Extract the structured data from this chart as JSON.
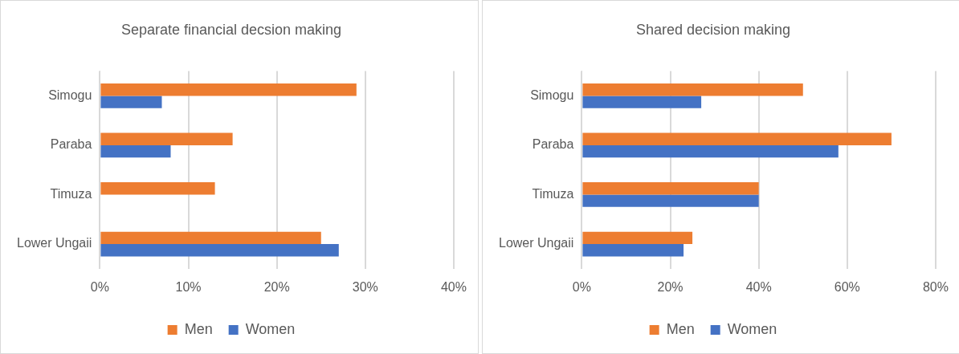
{
  "chart_data": [
    {
      "type": "bar",
      "orientation": "horizontal",
      "title": "Separate financial decsion making",
      "categories": [
        "Simogu",
        "Paraba",
        "Timuza",
        "Lower Ungaii"
      ],
      "series": [
        {
          "name": "Men",
          "color": "#ed7d31",
          "values": [
            29,
            15,
            13,
            25
          ]
        },
        {
          "name": "Women",
          "color": "#4472c4",
          "values": [
            7,
            8,
            0,
            27
          ]
        }
      ],
      "xlim": [
        0,
        40
      ],
      "xticks": [
        {
          "value": 0,
          "label": "0%"
        },
        {
          "value": 10,
          "label": "10%"
        },
        {
          "value": 20,
          "label": "20%"
        },
        {
          "value": 30,
          "label": "30%"
        },
        {
          "value": 40,
          "label": "40%"
        }
      ],
      "grid": "x",
      "legend": "bottom"
    },
    {
      "type": "bar",
      "orientation": "horizontal",
      "title": "Shared decision making",
      "categories": [
        "Simogu",
        "Paraba",
        "Timuza",
        "Lower Ungaii"
      ],
      "series": [
        {
          "name": "Men",
          "color": "#ed7d31",
          "values": [
            50,
            70,
            40,
            25
          ]
        },
        {
          "name": "Women",
          "color": "#4472c4",
          "values": [
            27,
            58,
            40,
            23
          ]
        }
      ],
      "xlim": [
        0,
        80
      ],
      "xticks": [
        {
          "value": 0,
          "label": "0%"
        },
        {
          "value": 20,
          "label": "20%"
        },
        {
          "value": 40,
          "label": "40%"
        },
        {
          "value": 60,
          "label": "60%"
        },
        {
          "value": 80,
          "label": "80%"
        }
      ],
      "grid": "x",
      "legend": "bottom"
    }
  ]
}
